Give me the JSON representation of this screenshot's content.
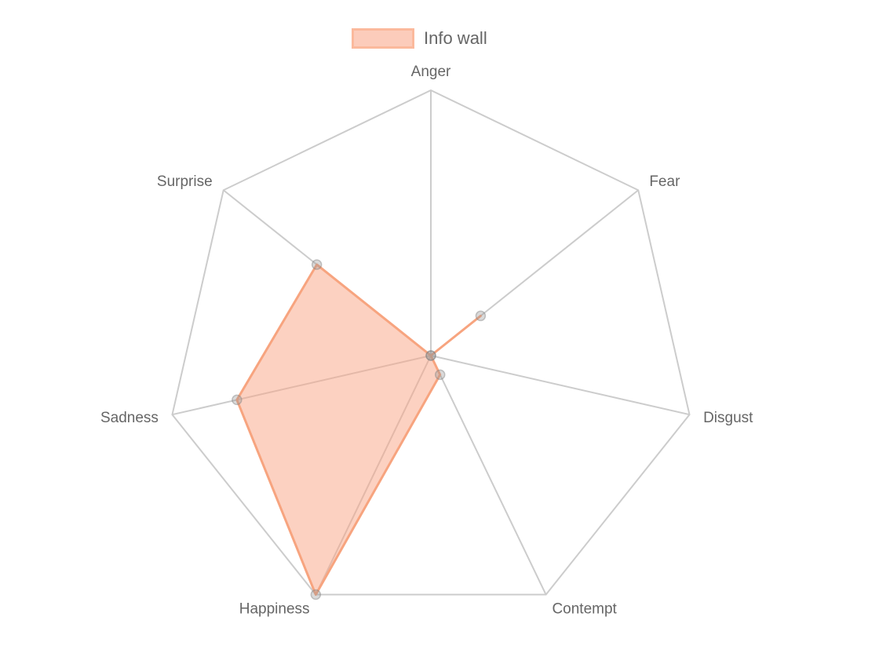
{
  "chart_data": {
    "type": "radar",
    "labels": [
      "Anger",
      "Fear",
      "Disgust",
      "Contempt",
      "Happiness",
      "Sadness",
      "Surprise"
    ],
    "series": [
      {
        "name": "Info wall",
        "values": [
          0,
          0.24,
          0,
          0.08,
          1.0,
          0.75,
          0.55
        ]
      }
    ],
    "rlim": [
      0,
      1
    ],
    "legend_position": "top",
    "colors": {
      "fill": "rgba(249,163,132,0.5)",
      "stroke": "#f7a47f",
      "point": "rgba(150,150,150,0.35)",
      "grid": "#cccccc",
      "label": "#666666"
    }
  }
}
